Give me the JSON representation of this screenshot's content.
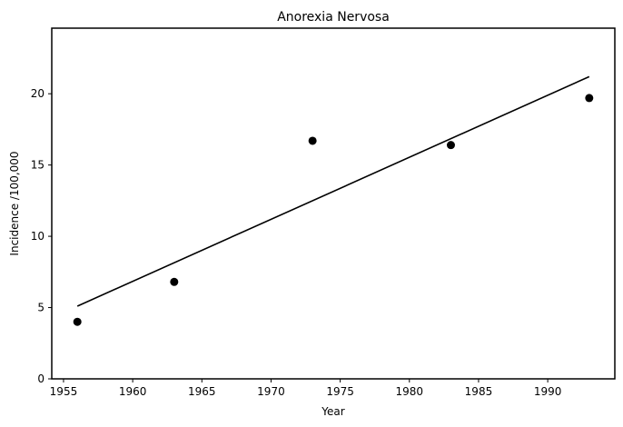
{
  "chart_data": {
    "type": "scatter",
    "title": "Anorexia Nervosa",
    "xlabel": "Year",
    "ylabel": "Incidence /100,000",
    "xlim": [
      1954.15,
      1994.85
    ],
    "ylim": [
      0,
      24.6
    ],
    "x_ticks": [
      1955,
      1960,
      1965,
      1970,
      1975,
      1980,
      1985,
      1990
    ],
    "y_ticks": [
      0,
      5,
      10,
      15,
      20
    ],
    "grid": false,
    "legend": "none",
    "series": [
      {
        "type": "scatter",
        "x": [
          1956,
          1963,
          1973,
          1983,
          1993
        ],
        "y": [
          4.0,
          6.8,
          16.7,
          16.4,
          19.7
        ],
        "color": "#000000"
      },
      {
        "type": "line",
        "x": [
          1956,
          1993
        ],
        "y": [
          5.1,
          21.2
        ],
        "color": "#000000"
      }
    ]
  }
}
